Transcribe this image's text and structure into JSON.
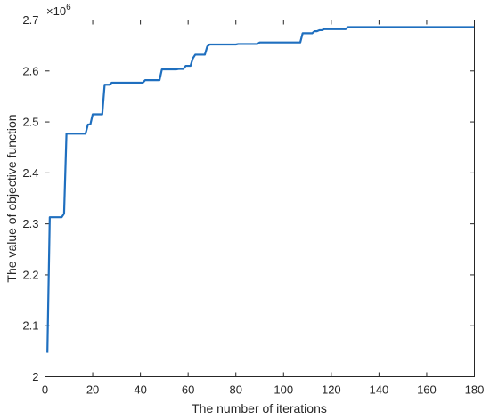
{
  "chart_data": {
    "type": "line",
    "title": "",
    "xlabel": "The number of iterations",
    "ylabel": "The value of objective function",
    "y_exponent_base": "×10",
    "y_exponent_power": "6",
    "xlim": [
      0,
      180
    ],
    "ylim": [
      2.0,
      2.7
    ],
    "xticks": [
      0,
      20,
      40,
      60,
      80,
      100,
      120,
      140,
      160,
      180
    ],
    "xtick_labels": [
      "0",
      "20",
      "40",
      "60",
      "80",
      "100",
      "120",
      "140",
      "160",
      "180"
    ],
    "yticks": [
      2.0,
      2.1,
      2.2,
      2.3,
      2.4,
      2.5,
      2.6,
      2.7
    ],
    "ytick_labels": [
      "2",
      "2.1",
      "2.2",
      "2.3",
      "2.4",
      "2.5",
      "2.6",
      "2.7"
    ],
    "grid": false,
    "line_color": "#1f6fbf",
    "series": [
      {
        "x": [
          1,
          2,
          3,
          7,
          8,
          9,
          10,
          17,
          18,
          19,
          20,
          21,
          22,
          24,
          25,
          27,
          28,
          41,
          42,
          48,
          49,
          55,
          56,
          58,
          59,
          61,
          62,
          63,
          64,
          67,
          68,
          69,
          70,
          80,
          81,
          89,
          90,
          107,
          108,
          112,
          113,
          114,
          115,
          116,
          117,
          126,
          127,
          180
        ],
        "y": [
          2.047,
          2.313,
          2.313,
          2.313,
          2.32,
          2.477,
          2.477,
          2.477,
          2.495,
          2.495,
          2.515,
          2.515,
          2.515,
          2.515,
          2.573,
          2.573,
          2.577,
          2.577,
          2.582,
          2.582,
          2.603,
          2.603,
          2.604,
          2.604,
          2.61,
          2.61,
          2.625,
          2.632,
          2.632,
          2.632,
          2.648,
          2.652,
          2.652,
          2.652,
          2.653,
          2.653,
          2.656,
          2.656,
          2.674,
          2.674,
          2.678,
          2.678,
          2.68,
          2.68,
          2.682,
          2.682,
          2.686,
          2.686
        ]
      }
    ]
  }
}
